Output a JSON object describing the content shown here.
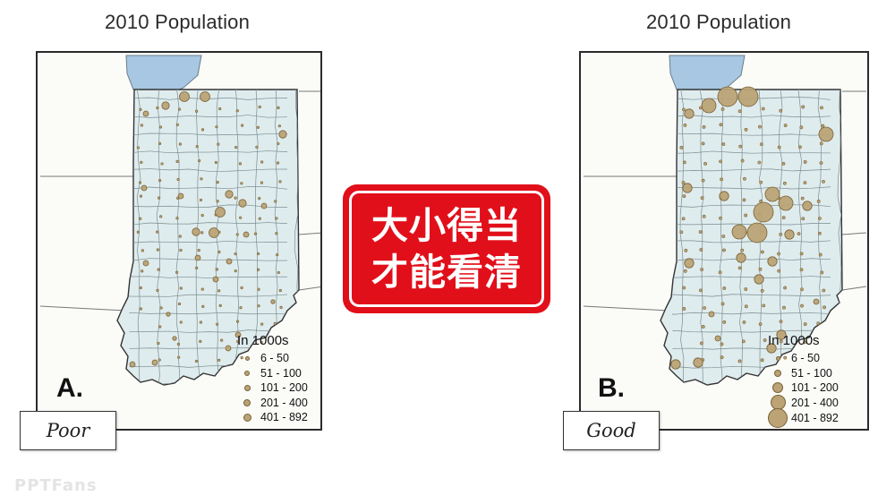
{
  "left_panel": {
    "title": "2010 Population",
    "letter": "A.",
    "tag": "Poor",
    "legend": {
      "title": "In 1000s",
      "items": [
        "6 - 50",
        "51 - 100",
        "101 - 200",
        "201 - 400",
        "401 - 892"
      ],
      "symbol_scale": "small"
    }
  },
  "right_panel": {
    "title": "2010 Population",
    "letter": "B.",
    "tag": "Good",
    "legend": {
      "title": "In 1000s",
      "items": [
        "6 - 50",
        "51 - 100",
        "101 - 200",
        "201 - 400",
        "401 - 892"
      ],
      "symbol_scale": "proportional"
    }
  },
  "center_badge": {
    "line1": "大小得当",
    "line2": "才能看清",
    "color": "#e10f1a"
  },
  "watermark": "PPTFans",
  "colors": {
    "land": "#dfecee",
    "lake": "#a7c7e2",
    "symbol": "#bba375",
    "symbol_stroke": "#7a6236"
  }
}
